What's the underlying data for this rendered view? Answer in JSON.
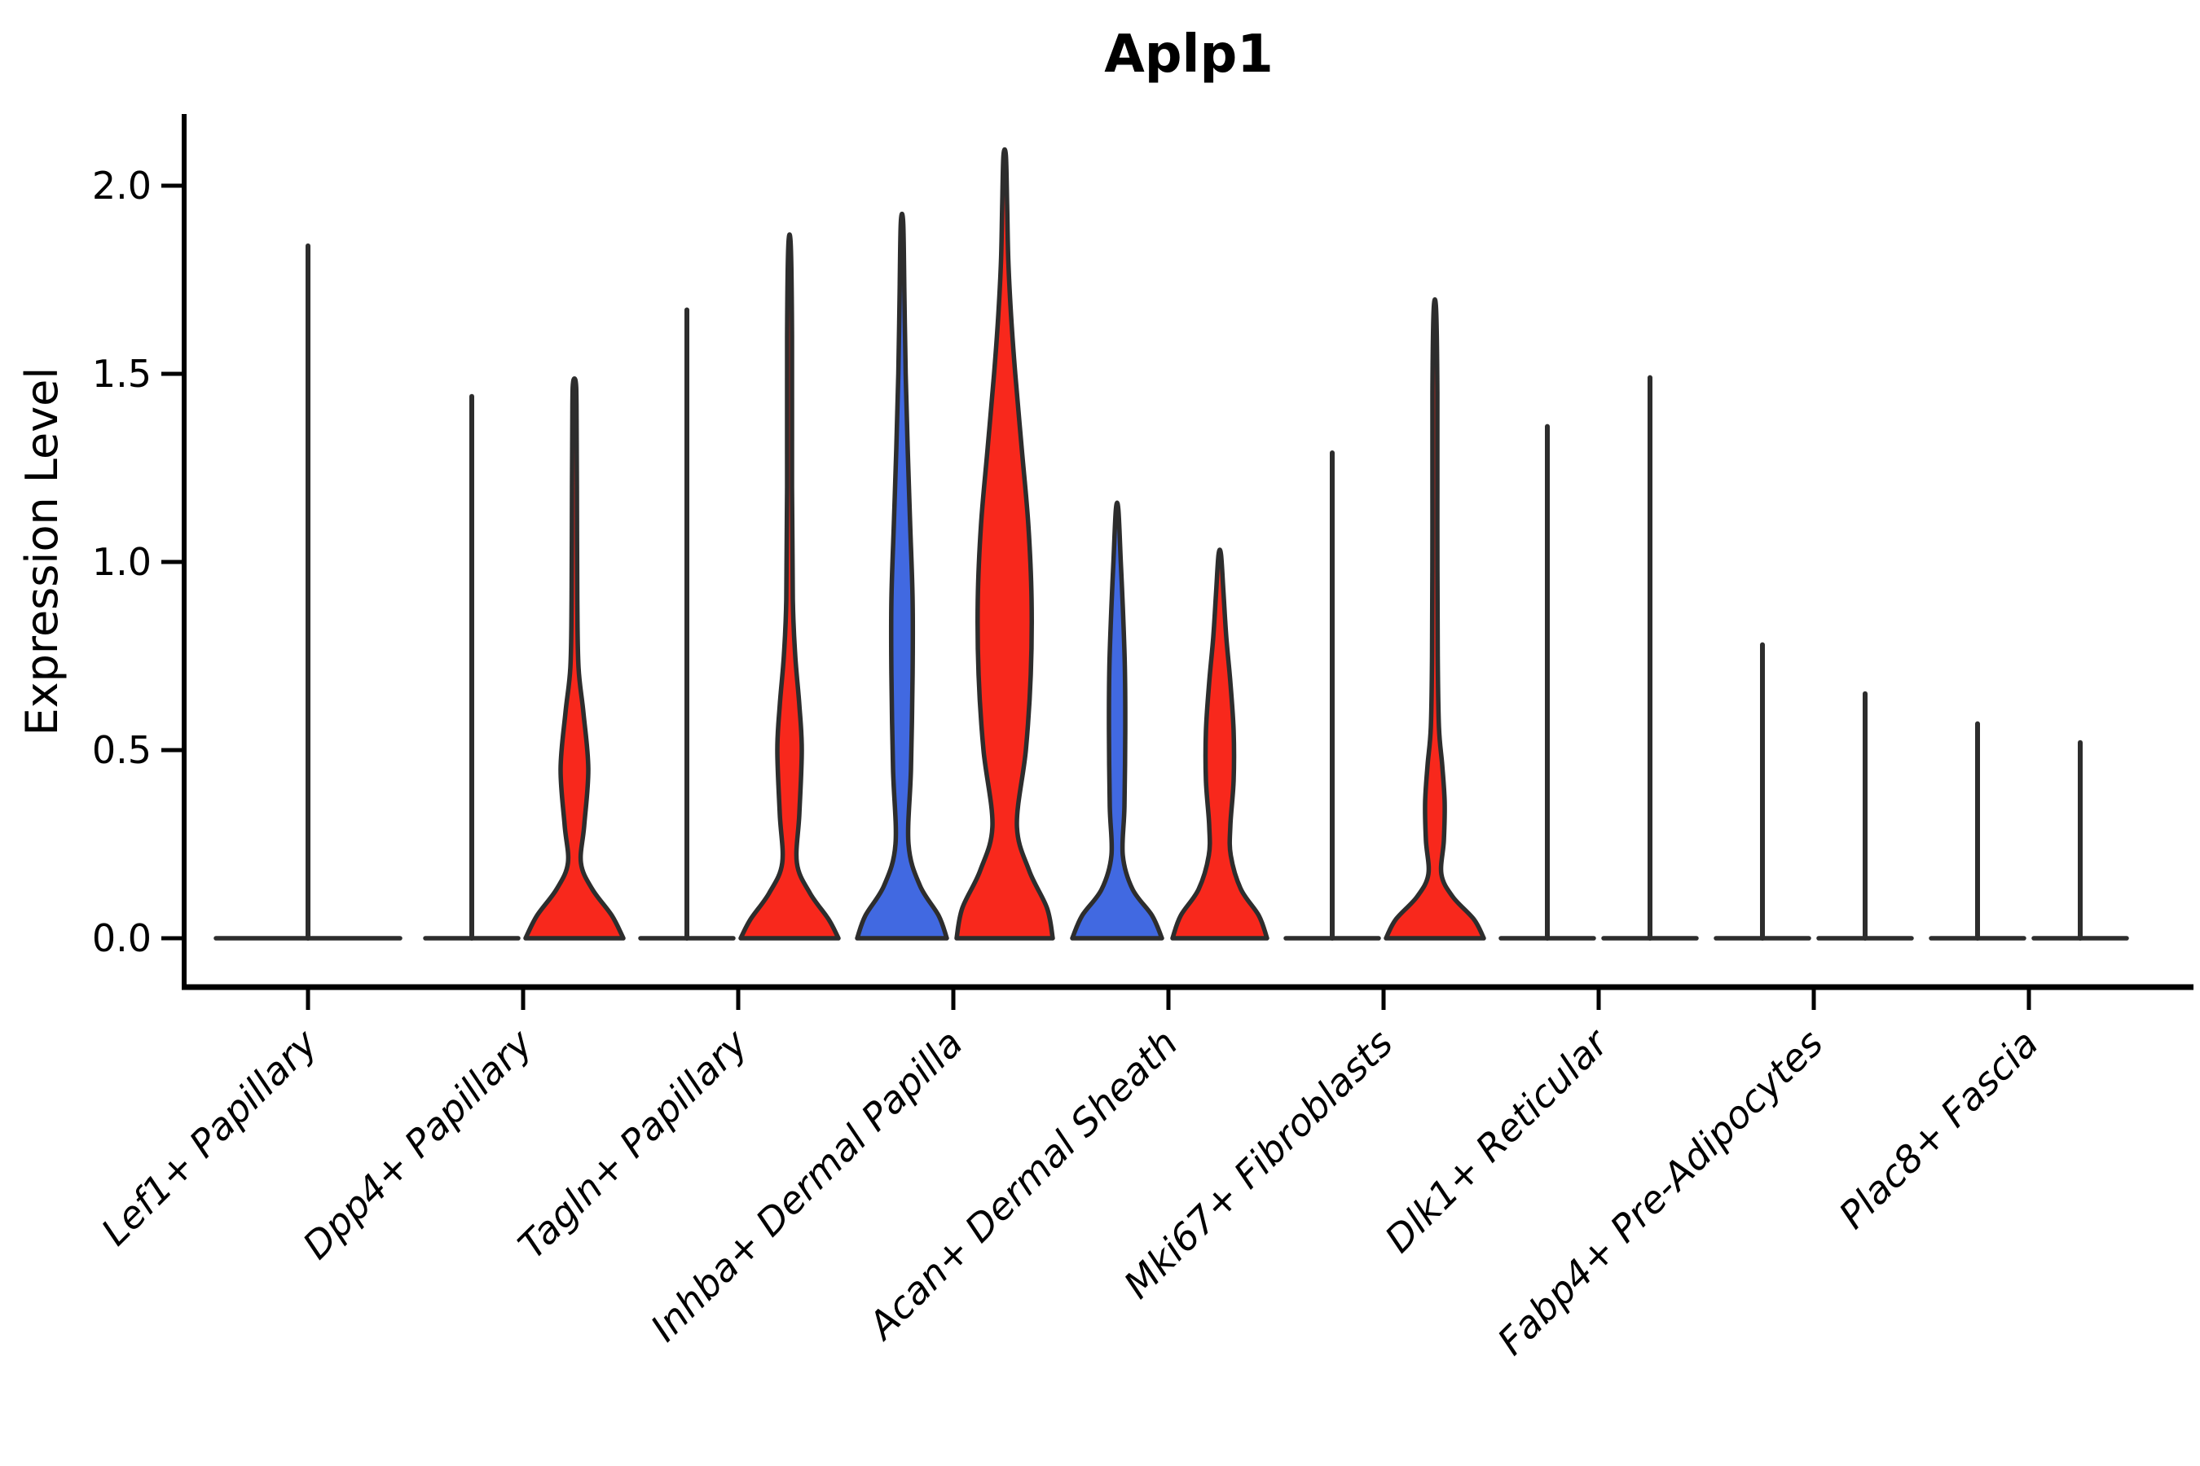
{
  "chart_data": {
    "type": "violin",
    "title": "Aplp1",
    "ylabel": "Expression Level",
    "xlabel": "",
    "legend": "none",
    "grid": false,
    "y_axis": {
      "ticks": [
        "0.0",
        "0.5",
        "1.0",
        "1.5",
        "2.0"
      ],
      "tick_values": [
        0.0,
        0.5,
        1.0,
        1.5,
        2.0
      ],
      "range": [
        -0.13,
        2.19
      ]
    },
    "x_tick_rotation": 45,
    "colors": {
      "blue_fill": "#4169E1",
      "red_fill": "#F8281C",
      "outline": "#2D2D2D",
      "axis": "#000000"
    },
    "categories": [
      "Lef1+ Papillary",
      "Dpp4+ Papillary",
      "Tagln+ Papillary",
      "Inhba+ Dermal Papilla",
      "Acan+ Dermal Sheath",
      "Mki67+ Fibroblasts",
      "Dlk1+ Reticular",
      "Fabp4+ Pre-Adipocytes",
      "Plac8+ Fascia"
    ],
    "groups": [
      {
        "label": "Lef1+ Papillary",
        "violins": [
          {
            "side": "center",
            "style": "line",
            "fill": "none",
            "peak": 1.84,
            "base_halfwidth": 113
          }
        ]
      },
      {
        "label": "Dpp4+ Papillary",
        "violins": [
          {
            "side": "left",
            "style": "line",
            "fill": "none",
            "peak": 1.44,
            "base_halfwidth": 57
          },
          {
            "side": "right",
            "style": "body",
            "fill": "#F8281C",
            "peak": 1.48,
            "base_halfwidth": 60,
            "profile": [
              [
                0,
                60
              ],
              [
                0.06,
                46
              ],
              [
                0.13,
                22
              ],
              [
                0.2,
                8
              ],
              [
                0.3,
                12
              ],
              [
                0.45,
                17
              ],
              [
                0.6,
                11
              ],
              [
                0.72,
                5
              ],
              [
                0.9,
                3.5
              ],
              [
                1.2,
                3
              ],
              [
                1.42,
                2.5
              ],
              [
                1.48,
                1.5
              ]
            ]
          }
        ]
      },
      {
        "label": "Tagln+ Papillary",
        "violins": [
          {
            "side": "left",
            "style": "line",
            "fill": "none",
            "peak": 1.67,
            "base_halfwidth": 57
          },
          {
            "side": "right",
            "style": "body",
            "fill": "#F8281C",
            "peak": 1.84,
            "base_halfwidth": 60,
            "profile": [
              [
                0,
                60
              ],
              [
                0.05,
                48
              ],
              [
                0.12,
                25
              ],
              [
                0.2,
                9
              ],
              [
                0.33,
                12
              ],
              [
                0.5,
                15
              ],
              [
                0.62,
                12
              ],
              [
                0.75,
                7
              ],
              [
                0.9,
                4
              ],
              [
                1.2,
                3
              ],
              [
                1.6,
                3
              ],
              [
                1.84,
                1.5
              ]
            ]
          }
        ]
      },
      {
        "label": "Inhba+ Dermal Papilla",
        "violins": [
          {
            "side": "left",
            "style": "body",
            "fill": "#4169E1",
            "peak": 1.9,
            "base_halfwidth": 55,
            "profile": [
              [
                0,
                55
              ],
              [
                0.06,
                45
              ],
              [
                0.14,
                22
              ],
              [
                0.25,
                8
              ],
              [
                0.45,
                11
              ],
              [
                0.7,
                13
              ],
              [
                0.9,
                13
              ],
              [
                1.1,
                10
              ],
              [
                1.3,
                7
              ],
              [
                1.5,
                4.5
              ],
              [
                1.7,
                3
              ],
              [
                1.9,
                1.5
              ]
            ]
          },
          {
            "side": "right",
            "style": "body",
            "fill": "#F8281C",
            "peak": 2.08,
            "base_halfwidth": 59,
            "profile": [
              [
                0,
                59
              ],
              [
                0.08,
                52
              ],
              [
                0.18,
                30
              ],
              [
                0.3,
                15
              ],
              [
                0.5,
                26
              ],
              [
                0.7,
                32
              ],
              [
                0.9,
                33
              ],
              [
                1.1,
                29
              ],
              [
                1.3,
                21
              ],
              [
                1.5,
                13
              ],
              [
                1.65,
                8
              ],
              [
                1.8,
                4.5
              ],
              [
                1.95,
                3
              ],
              [
                2.08,
                1.5
              ]
            ]
          }
        ]
      },
      {
        "label": "Acan+ Dermal Sheath",
        "violins": [
          {
            "side": "left",
            "style": "body",
            "fill": "#4169E1",
            "peak": 1.14,
            "base_halfwidth": 55,
            "profile": [
              [
                0,
                55
              ],
              [
                0.06,
                43
              ],
              [
                0.13,
                19
              ],
              [
                0.22,
                7
              ],
              [
                0.35,
                9
              ],
              [
                0.55,
                10
              ],
              [
                0.72,
                9.5
              ],
              [
                0.88,
                7
              ],
              [
                1.0,
                4.5
              ],
              [
                1.14,
                1.5
              ]
            ]
          },
          {
            "side": "right",
            "style": "body",
            "fill": "#F8281C",
            "peak": 1.02,
            "base_halfwidth": 58,
            "profile": [
              [
                0,
                58
              ],
              [
                0.06,
                48
              ],
              [
                0.13,
                26
              ],
              [
                0.22,
                13.5
              ],
              [
                0.3,
                13
              ],
              [
                0.42,
                17
              ],
              [
                0.55,
                17
              ],
              [
                0.68,
                13
              ],
              [
                0.8,
                8
              ],
              [
                0.92,
                4.5
              ],
              [
                1.02,
                1.5
              ]
            ]
          }
        ]
      },
      {
        "label": "Mki67+ Fibroblasts",
        "violins": [
          {
            "side": "left",
            "style": "line",
            "fill": "none",
            "peak": 1.29,
            "base_halfwidth": 57
          },
          {
            "side": "right",
            "style": "body",
            "fill": "#F8281C",
            "peak": 1.67,
            "base_halfwidth": 60,
            "profile": [
              [
                0,
                60
              ],
              [
                0.05,
                48
              ],
              [
                0.11,
                22
              ],
              [
                0.17,
                8
              ],
              [
                0.26,
                11
              ],
              [
                0.36,
                12
              ],
              [
                0.46,
                9
              ],
              [
                0.56,
                5
              ],
              [
                0.75,
                3.5
              ],
              [
                1.1,
                3
              ],
              [
                1.45,
                3
              ],
              [
                1.67,
                1.5
              ]
            ]
          }
        ]
      },
      {
        "label": "Dlk1+ Reticular",
        "violins": [
          {
            "side": "left",
            "style": "line",
            "fill": "none",
            "peak": 1.36,
            "base_halfwidth": 57
          },
          {
            "side": "right",
            "style": "line",
            "fill": "none",
            "peak": 1.49,
            "base_halfwidth": 57
          }
        ]
      },
      {
        "label": "Fabp4+ Pre-Adipocytes",
        "violins": [
          {
            "side": "left",
            "style": "line",
            "fill": "none",
            "peak": 0.78,
            "base_halfwidth": 57
          },
          {
            "side": "right",
            "style": "line",
            "fill": "none",
            "peak": 0.65,
            "base_halfwidth": 57
          }
        ]
      },
      {
        "label": "Plac8+ Fascia",
        "violins": [
          {
            "side": "left",
            "style": "line",
            "fill": "none",
            "peak": 0.57,
            "base_halfwidth": 57
          },
          {
            "side": "right",
            "style": "line",
            "fill": "none",
            "peak": 0.52,
            "base_halfwidth": 57
          }
        ]
      }
    ]
  }
}
